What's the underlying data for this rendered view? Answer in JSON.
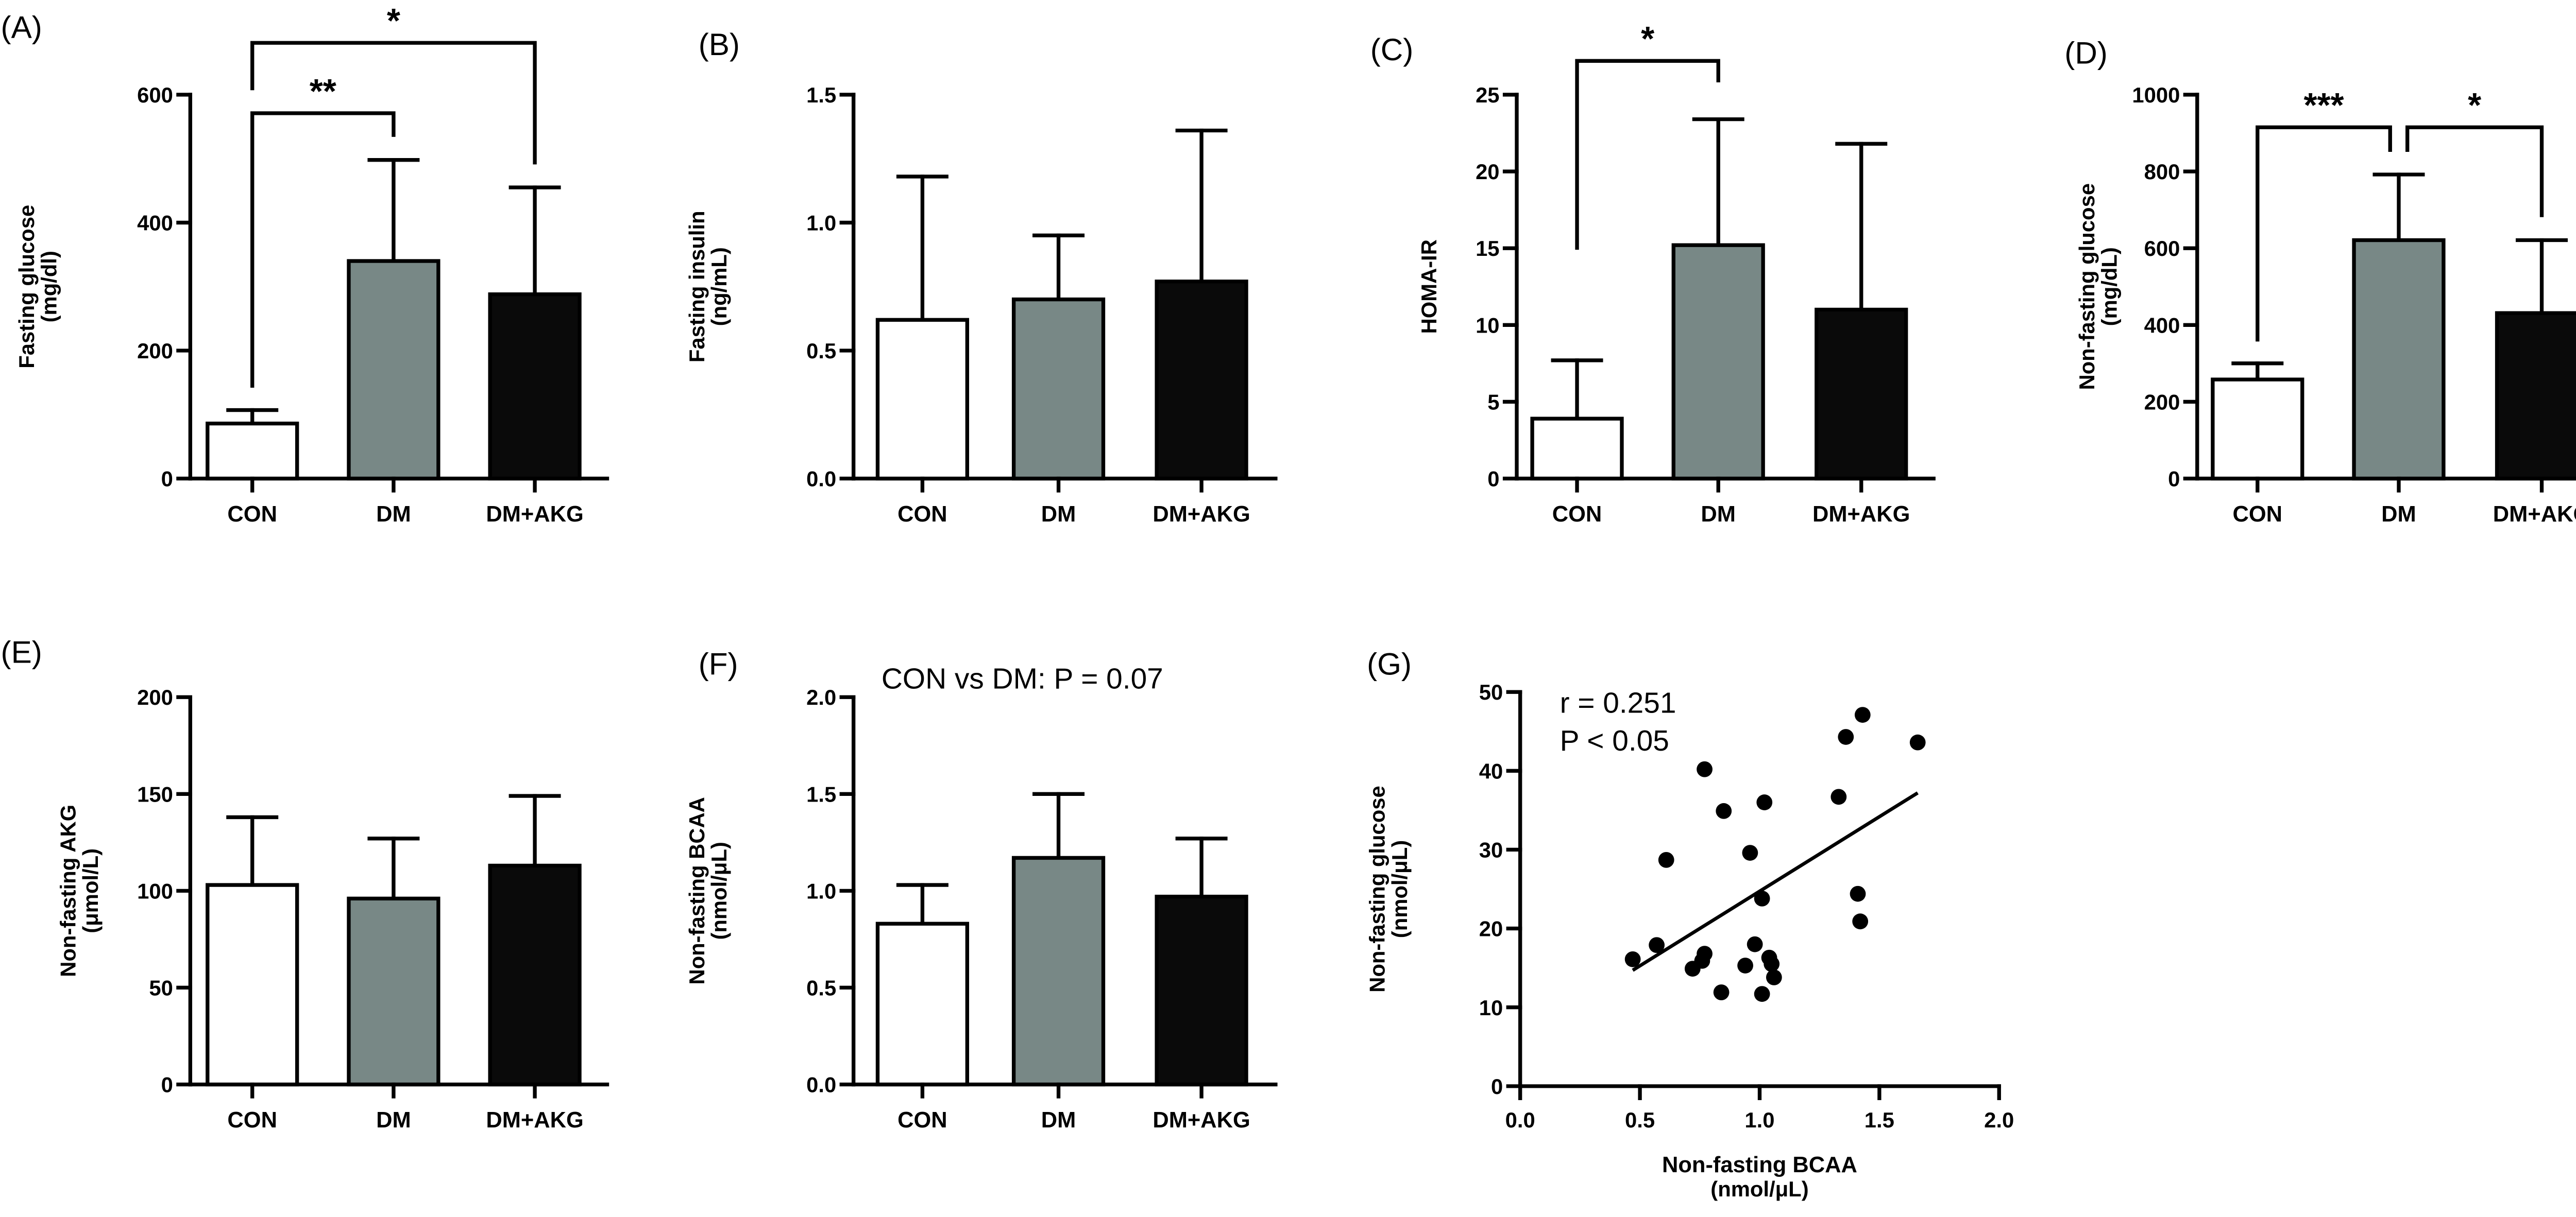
{
  "colors": {
    "CON": "#ffffff",
    "DM": "#788886",
    "DM+AKG": "#0a0a0a"
  },
  "chart_data": [
    {
      "panel": "(A)",
      "type": "bar",
      "categories": [
        "CON",
        "DM",
        "DM+AKG"
      ],
      "values": [
        86,
        340,
        288
      ],
      "error_upper": [
        107,
        498,
        455
      ],
      "ylabel": [
        "Fasting glucose",
        "(mg/dl)"
      ],
      "ylim": [
        0,
        600
      ],
      "yticks": [
        "0",
        "200",
        "400",
        "600"
      ],
      "grid": false,
      "significance": [
        {
          "from": "CON",
          "to": "DM",
          "label": "**",
          "y": 571,
          "leg_from": 142,
          "leg_to": 534
        },
        {
          "from": "CON",
          "to": "DM+AKG",
          "label": "*",
          "y": 681,
          "leg_from": 607,
          "leg_to": 491
        }
      ]
    },
    {
      "panel": "(B)",
      "type": "bar",
      "categories": [
        "CON",
        "DM",
        "DM+AKG"
      ],
      "values": [
        0.62,
        0.7,
        0.77
      ],
      "error_upper": [
        1.18,
        0.95,
        1.36
      ],
      "ylabel": [
        "Fasting insulin",
        "(ng/mL)"
      ],
      "ylim": [
        0,
        1.5
      ],
      "yticks": [
        "0.0",
        "0.5",
        "1.0",
        "1.5"
      ],
      "grid": false,
      "significance": []
    },
    {
      "panel": "(C)",
      "type": "bar",
      "categories": [
        "CON",
        "DM",
        "DM+AKG"
      ],
      "values": [
        3.9,
        15.2,
        11.0
      ],
      "error_upper": [
        7.7,
        23.4,
        21.8
      ],
      "ylabel": [
        "HOMA-IR"
      ],
      "ylim": [
        0,
        25
      ],
      "yticks": [
        "0",
        "5",
        "10",
        "15",
        "20",
        "25"
      ],
      "grid": false,
      "significance": [
        {
          "from": "CON",
          "to": "DM",
          "label": "*",
          "y": 27.2,
          "leg_from": 14.9,
          "leg_to": 25.8
        }
      ]
    },
    {
      "panel": "(D)",
      "type": "bar",
      "categories": [
        "CON",
        "DM",
        "DM+AKG"
      ],
      "values": [
        258,
        621,
        431
      ],
      "error_upper": [
        300,
        792,
        621
      ],
      "ylabel": [
        "Non-fasting glucose",
        "(mg/dL)"
      ],
      "ylim": [
        0,
        1000
      ],
      "yticks": [
        "0",
        "200",
        "400",
        "600",
        "800",
        "1000"
      ],
      "grid": false,
      "significance": [
        {
          "from": "CON",
          "to": "DM",
          "label": "***",
          "y": 915,
          "leg_from": 357,
          "leg_to": 851
        },
        {
          "from": "DM",
          "to": "DM+AKG",
          "label": "*",
          "y": 915,
          "leg_from": 851,
          "leg_to": 681
        }
      ]
    },
    {
      "panel": "(E)",
      "type": "bar",
      "categories": [
        "CON",
        "DM",
        "DM+AKG"
      ],
      "values": [
        103,
        96,
        113
      ],
      "error_upper": [
        138,
        127,
        149
      ],
      "ylabel": [
        "Non-fasting AKG",
        "(μmol/L)"
      ],
      "ylim": [
        0,
        200
      ],
      "yticks": [
        "0",
        "50",
        "100",
        "150",
        "200"
      ],
      "grid": false,
      "significance": []
    },
    {
      "panel": "(F)",
      "type": "bar",
      "categories": [
        "CON",
        "DM",
        "DM+AKG"
      ],
      "values": [
        0.83,
        1.17,
        0.97
      ],
      "error_upper": [
        1.03,
        1.5,
        1.27
      ],
      "ylabel": [
        "Non-fasting BCAA",
        "(nmol/μL)"
      ],
      "ylim": [
        0,
        2.0
      ],
      "yticks": [
        "0.0",
        "0.5",
        "1.0",
        "1.5",
        "2.0"
      ],
      "grid": false,
      "annotation": "CON vs DM: P = 0.07",
      "significance": []
    },
    {
      "panel": "(G)",
      "type": "scatter",
      "x": [
        0.47,
        0.57,
        0.61,
        0.77,
        0.77,
        0.76,
        0.72,
        0.85,
        0.84,
        0.96,
        0.94,
        0.98,
        1.01,
        1.02,
        1.01,
        1.04,
        1.05,
        1.06,
        1.33,
        1.36,
        1.43,
        1.41,
        1.42,
        1.66
      ],
      "y": [
        16.1,
        17.9,
        28.7,
        40.2,
        16.8,
        15.9,
        14.9,
        34.9,
        11.9,
        29.6,
        15.3,
        18.0,
        23.8,
        36.0,
        11.7,
        16.3,
        15.5,
        13.8,
        36.7,
        44.3,
        47.1,
        24.4,
        20.9,
        43.6
      ],
      "fit_line": {
        "x": [
          0.47,
          1.66
        ],
        "y": [
          14.7,
          37.2
        ]
      },
      "xlabel": [
        "Non-fasting BCAA",
        "(nmol/μL)"
      ],
      "ylabel": [
        "Non-fasting glucose",
        "(nmol/μL)"
      ],
      "xlim": [
        0,
        2.0
      ],
      "ylim": [
        0,
        50
      ],
      "xticks": [
        "0.0",
        "0.5",
        "1.0",
        "1.5",
        "2.0"
      ],
      "yticks": [
        "0",
        "10",
        "20",
        "30",
        "40",
        "50"
      ],
      "grid": false,
      "annotations": [
        "r = 0.251",
        "P < 0.05"
      ]
    }
  ]
}
